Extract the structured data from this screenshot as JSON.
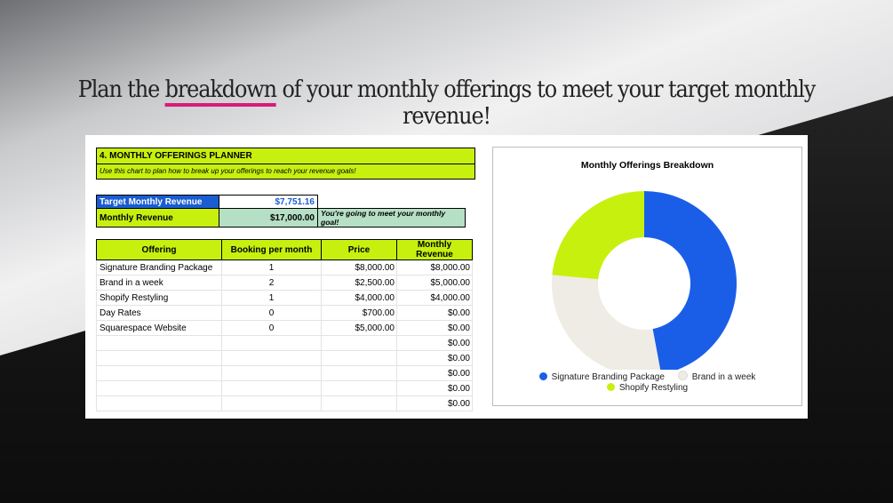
{
  "headline": {
    "before": "Plan the ",
    "highlight": "breakdown",
    "after": " of your monthly offerings to meet your target monthly revenue!",
    "underline_color": "#d81b7c"
  },
  "planner": {
    "title": "4. MONTHLY OFFERINGS PLANNER",
    "subtitle": "Use this chart to plan how to break up your offerings to reach your revenue goals!",
    "target_label": "Target Monthly Revenue",
    "target_value": "$7,751.16",
    "monthly_label": "Monthly Revenue",
    "monthly_value": "$17,000.00",
    "goal_message": "You're going to meet your monthly goal!",
    "columns": [
      "Offering",
      "Booking per month",
      "Price",
      "Monthly Revenue"
    ],
    "rows": [
      [
        "Signature Branding Package",
        "1",
        "$8,000.00",
        "$8,000.00"
      ],
      [
        "Brand in a week",
        "2",
        "$2,500.00",
        "$5,000.00"
      ],
      [
        "Shopify Restyling",
        "1",
        "$4,000.00",
        "$4,000.00"
      ],
      [
        "Day Rates",
        "0",
        "$700.00",
        "$0.00"
      ],
      [
        "Squarespace Website",
        "0",
        "$5,000.00",
        "$0.00"
      ],
      [
        "",
        "",
        "",
        "$0.00"
      ],
      [
        "",
        "",
        "",
        "$0.00"
      ],
      [
        "",
        "",
        "",
        "$0.00"
      ],
      [
        "",
        "",
        "",
        "$0.00"
      ],
      [
        "",
        "",
        "",
        "$0.00"
      ]
    ],
    "colors": {
      "lime": "#c7f00f",
      "blue": "#1a5cd1",
      "mint": "#b6e0c5"
    }
  },
  "chart_data": {
    "type": "pie",
    "variant": "donut",
    "title": "Monthly Offerings Breakdown",
    "categories": [
      "Signature Branding Package",
      "Brand in a week",
      "Shopify Restyling"
    ],
    "values": [
      8000,
      5000,
      4000
    ],
    "colors": [
      "#1a5ee8",
      "#efece6",
      "#c7f00f"
    ],
    "legend_position": "bottom"
  }
}
